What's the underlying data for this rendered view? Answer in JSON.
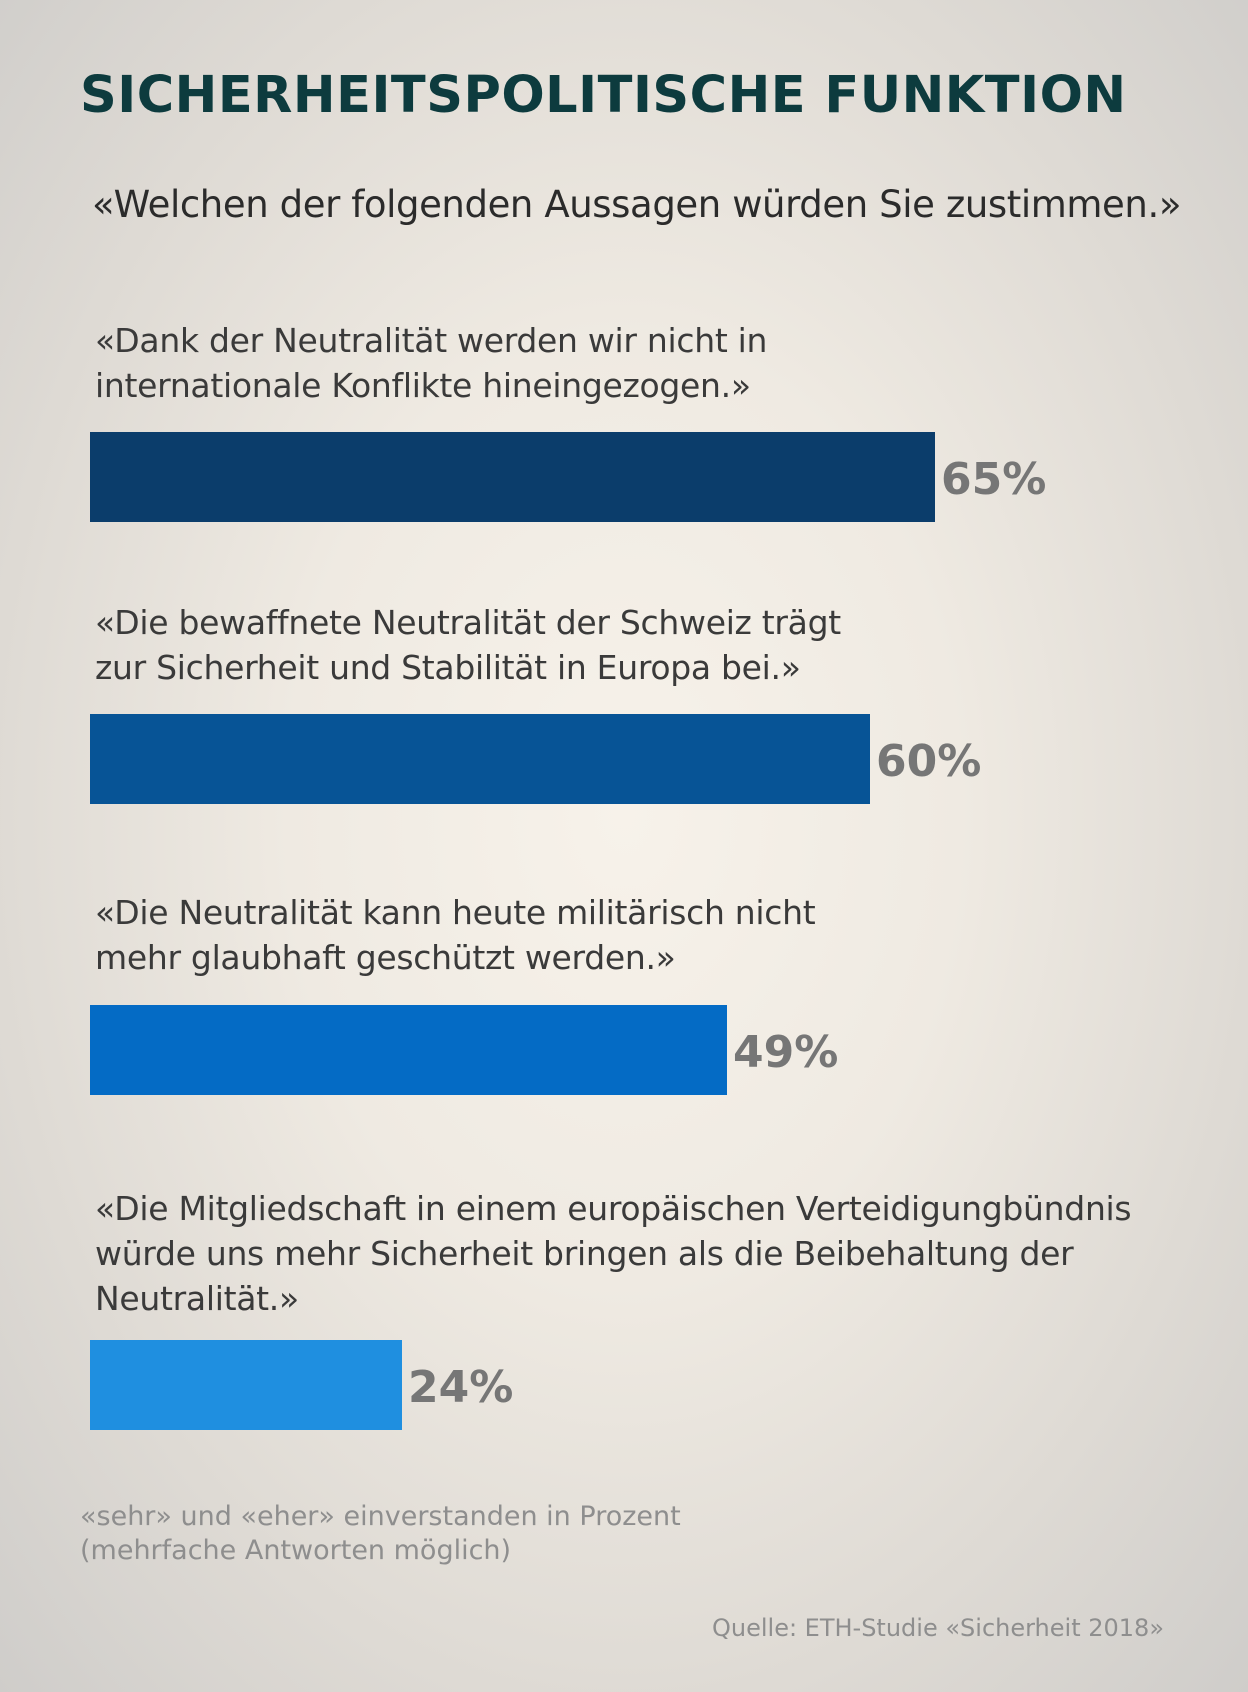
{
  "title": "SICHERHEITSPOLITISCHE  FUNKTION",
  "subtitle": "«Welchen der folgenden Aussagen würden Sie zustimmen.»",
  "footnote": {
    "line1": "«sehr» und «eher» einverstanden in Prozent",
    "line2": "(mehrfache Antworten möglich)"
  },
  "source": "Quelle: ETH-Studie «Sicherheit 2018»",
  "chart_data": {
    "type": "bar",
    "orientation": "horizontal",
    "unit": "%",
    "xlim": [
      0,
      100
    ],
    "grid": false,
    "categories": [
      "«Dank der Neutralität werden wir nicht in\ninternationale Konflikte hineingezogen.»",
      "«Die bewaffnete Neutralität der Schweiz trägt\nzur Sicherheit und Stabilität in Europa bei.»",
      "«Die Neutralität kann heute militärisch nicht\nmehr glaubhaft geschützt werden.»",
      "«Die Mitgliedschaft in einem europäischen Verteidigungbündnis\nwürde uns mehr Sicherheit bringen als die Beibehaltung der\nNeutralität.»"
    ],
    "values": [
      65,
      60,
      49,
      24
    ],
    "value_labels": [
      "65%",
      "60%",
      "49%",
      "24%"
    ],
    "colors": [
      "#0b3d6b",
      "#075496",
      "#046bc5",
      "#1f8fe0"
    ],
    "label_color": "#767676"
  }
}
